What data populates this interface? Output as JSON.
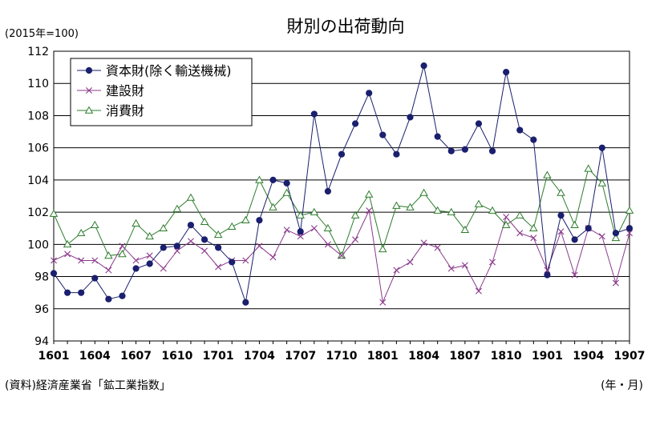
{
  "chart_data": {
    "type": "line",
    "title": "財別の出荷動向",
    "unit_label": "(2015年=100)",
    "source": "(資料)経済産業省「鉱工業指数」",
    "xlabel": "(年・月)",
    "ylabel": "",
    "ylim": [
      94,
      112
    ],
    "yticks": [
      94,
      96,
      98,
      100,
      102,
      104,
      106,
      108,
      110,
      112
    ],
    "xtick_labels": [
      "1601",
      "1604",
      "1607",
      "1610",
      "1701",
      "1704",
      "1707",
      "1710",
      "1801",
      "1804",
      "1807",
      "1810",
      "1901",
      "1904",
      "1907"
    ],
    "x": [
      "1601",
      "1602",
      "1603",
      "1604",
      "1605",
      "1606",
      "1607",
      "1608",
      "1609",
      "1610",
      "1611",
      "1612",
      "1701",
      "1702",
      "1703",
      "1704",
      "1705",
      "1706",
      "1707",
      "1708",
      "1709",
      "1710",
      "1711",
      "1712",
      "1801",
      "1802",
      "1803",
      "1804",
      "1805",
      "1806",
      "1807",
      "1808",
      "1809",
      "1810",
      "1811",
      "1812",
      "1901",
      "1902",
      "1903",
      "1904",
      "1905",
      "1906",
      "1907"
    ],
    "grid": true,
    "legend_position": "top-left",
    "series": [
      {
        "name": "資本財(除く輸送機械)",
        "color": "#1a1f6e",
        "marker": "circle",
        "values": [
          98.2,
          97.0,
          97.0,
          97.9,
          96.6,
          96.8,
          98.5,
          98.8,
          99.8,
          99.9,
          101.2,
          100.3,
          99.8,
          98.9,
          96.4,
          101.5,
          104.0,
          103.8,
          100.8,
          108.1,
          103.3,
          105.6,
          107.5,
          109.4,
          106.8,
          105.6,
          107.9,
          111.1,
          106.7,
          105.8,
          105.9,
          107.5,
          105.8,
          110.7,
          107.1,
          106.5,
          98.1,
          101.8,
          100.3,
          101.0,
          106.0,
          100.7,
          101.0
        ]
      },
      {
        "name": "建設財",
        "color": "#8b3a8b",
        "marker": "x",
        "values": [
          99.0,
          99.4,
          99.0,
          99.0,
          98.4,
          99.9,
          99.0,
          99.3,
          98.5,
          99.6,
          100.2,
          99.6,
          98.6,
          99.0,
          99.0,
          99.9,
          99.2,
          100.9,
          100.5,
          101.0,
          100.0,
          99.3,
          100.3,
          102.1,
          96.4,
          98.4,
          98.9,
          100.1,
          99.8,
          98.5,
          98.7,
          97.1,
          98.9,
          101.7,
          100.7,
          100.4,
          98.4,
          100.8,
          98.1,
          101.0,
          100.5,
          97.6,
          100.7
        ]
      },
      {
        "name": "消費財",
        "color": "#2e7d2e",
        "marker": "triangle",
        "values": [
          101.9,
          100.0,
          100.7,
          101.2,
          99.3,
          99.4,
          101.3,
          100.5,
          101.0,
          102.2,
          102.9,
          101.4,
          100.6,
          101.1,
          101.5,
          104.0,
          102.3,
          103.2,
          101.8,
          102.0,
          101.0,
          99.3,
          101.8,
          103.1,
          99.7,
          102.4,
          102.3,
          103.2,
          102.1,
          102.0,
          100.9,
          102.5,
          102.1,
          101.2,
          101.8,
          101.0,
          104.3,
          103.2,
          101.2,
          104.7,
          103.8,
          100.4,
          102.1
        ]
      }
    ]
  }
}
